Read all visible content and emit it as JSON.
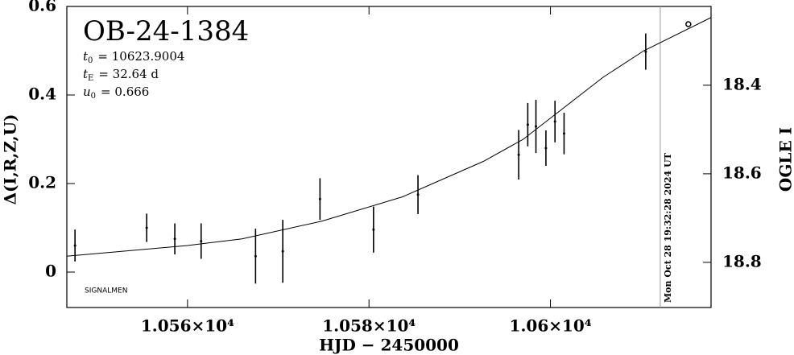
{
  "chart_data": {
    "type": "scatter",
    "title": "OB-24-1384",
    "params": [
      {
        "symbol": "t",
        "sub": "0",
        "text": "= 10623.9004"
      },
      {
        "symbol": "t",
        "sub": "E",
        "text": "= 32.64 d"
      },
      {
        "symbol": "u",
        "sub": "0",
        "text": "= 0.666"
      }
    ],
    "credit": "SIGNALMEN",
    "x_label": "HJD − 2450000",
    "y_label": "Δ(I,R,Z,U)",
    "y2_label": "OGLE I",
    "xlim": [
      10546.7,
      10617.7
    ],
    "ylim": [
      -0.08,
      0.6
    ],
    "y2lim": [
      18.902,
      18.222
    ],
    "xticks": [
      {
        "value": 10560,
        "label": "1.056×10⁴"
      },
      {
        "value": 10580,
        "label": "1.058×10⁴"
      },
      {
        "value": 10600,
        "label": "1.06×10⁴"
      }
    ],
    "yticks": [
      0,
      0.2,
      0.4,
      0.6
    ],
    "y2ticks": [
      18.4,
      18.6,
      18.8
    ],
    "series": [
      {
        "name": "data",
        "color": "#000000",
        "x": [
          10547.6,
          10555.5,
          10558.6,
          10561.5,
          10567.5,
          10570.5,
          10574.6,
          10580.5,
          10585.4,
          10596.5,
          10597.5,
          10598.4,
          10599.5,
          10600.5,
          10601.5,
          10610.5
        ],
        "values": [
          0.06,
          0.1,
          0.075,
          0.07,
          0.036,
          0.047,
          0.165,
          0.096,
          0.175,
          0.265,
          0.333,
          0.329,
          0.28,
          0.34,
          0.313,
          0.498
        ],
        "errors": [
          0.036,
          0.032,
          0.035,
          0.04,
          0.062,
          0.071,
          0.047,
          0.052,
          0.044,
          0.056,
          0.049,
          0.06,
          0.04,
          0.047,
          0.047,
          0.041
        ]
      },
      {
        "name": "model",
        "color": "#000000",
        "x": [
          10546.7,
          10560,
          10566,
          10574.8,
          10583.7,
          10592.6,
          10597,
          10601.4,
          10605.8,
          10610.3,
          10617.7
        ],
        "values": [
          0.036,
          0.06,
          0.075,
          0.115,
          0.17,
          0.25,
          0.3,
          0.37,
          0.44,
          0.5,
          0.575
        ]
      }
    ],
    "now_line": {
      "x": 10612.1,
      "label": "Mon Oct 28 19:32:28 2024 UT",
      "color": "#999999"
    },
    "marker": {
      "x": 10615.2,
      "y": 0.56
    }
  }
}
